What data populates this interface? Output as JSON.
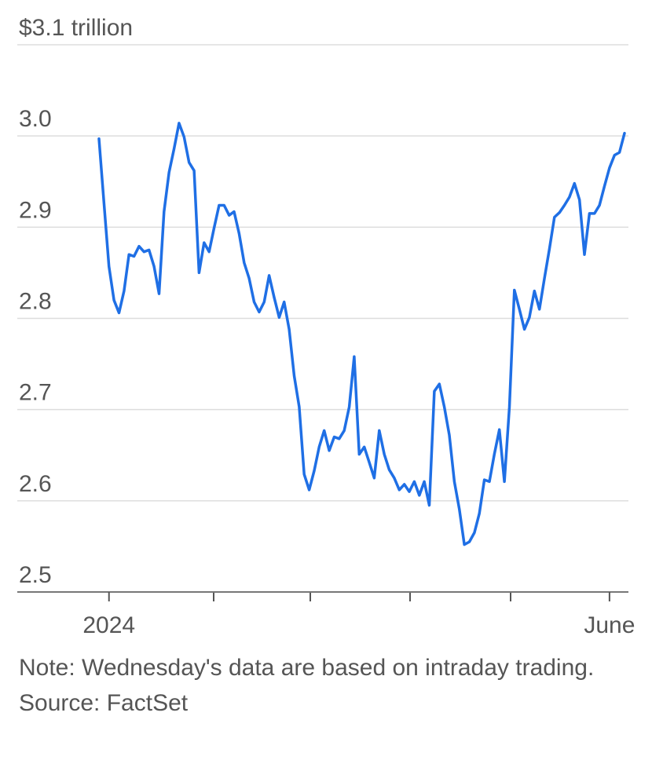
{
  "chart_data": {
    "type": "line",
    "categories": [
      null,
      null,
      "2024",
      null,
      null,
      null,
      null,
      null,
      null,
      null,
      null,
      null,
      null,
      null,
      null,
      null,
      null,
      null,
      null,
      null,
      null,
      null,
      null,
      null,
      null,
      null,
      null,
      null,
      null,
      null,
      null,
      null,
      null,
      null,
      null,
      null,
      null,
      null,
      null,
      null,
      null,
      null,
      null,
      null,
      null,
      null,
      null,
      null,
      null,
      null,
      null,
      null,
      null,
      null,
      null,
      null,
      null,
      null,
      null,
      null,
      null,
      null,
      null,
      null,
      null,
      null,
      null,
      null,
      null,
      null,
      null,
      null,
      null,
      null,
      null,
      null,
      null,
      null,
      null,
      null,
      null,
      null,
      null,
      null,
      null,
      null,
      null,
      null,
      null,
      null,
      null,
      null,
      null,
      null,
      null,
      null,
      null,
      null,
      null,
      null,
      null,
      null,
      "June",
      null,
      null,
      null
    ],
    "series": [
      {
        "color": "#1f6fe5",
        "values": [
          2.997,
          2.926,
          2.857,
          2.82,
          2.806,
          2.83,
          2.87,
          2.868,
          2.879,
          2.873,
          2.875,
          2.857,
          2.827,
          2.917,
          2.96,
          2.986,
          3.014,
          2.999,
          2.971,
          2.962,
          2.85,
          2.883,
          2.873,
          2.899,
          2.924,
          2.924,
          2.913,
          2.917,
          2.893,
          2.861,
          2.844,
          2.818,
          2.807,
          2.818,
          2.847,
          2.823,
          2.801,
          2.818,
          2.788,
          2.737,
          2.703,
          2.629,
          2.612,
          2.633,
          2.659,
          2.677,
          2.655,
          2.67,
          2.668,
          2.677,
          2.703,
          2.758,
          2.651,
          2.659,
          2.642,
          2.625,
          2.677,
          2.651,
          2.634,
          2.625,
          2.612,
          2.618,
          2.61,
          2.621,
          2.606,
          2.621,
          2.595,
          2.72,
          2.728,
          2.703,
          2.672,
          2.621,
          2.591,
          2.552,
          2.555,
          2.565,
          2.586,
          2.623,
          2.621,
          2.651,
          2.678,
          2.621,
          2.703,
          2.831,
          2.81,
          2.788,
          2.801,
          2.83,
          2.81,
          2.844,
          2.876,
          2.911,
          2.916,
          2.924,
          2.933,
          2.948,
          2.93,
          2.87,
          2.915,
          2.915,
          2.924,
          2.945,
          2.965,
          2.979,
          2.982,
          3.003
        ]
      }
    ],
    "ylim": [
      2.5,
      3.1
    ],
    "yticks": [
      2.5,
      2.6,
      2.7,
      2.8,
      2.9,
      {
        "value": 3,
        "label": "3.0"
      },
      {
        "value": 3.1,
        "label": "$3.1 trillion"
      }
    ],
    "grid": true,
    "note": "Note: Wednesday's data are based on intraday trading.",
    "source": "Source: FactSet"
  }
}
